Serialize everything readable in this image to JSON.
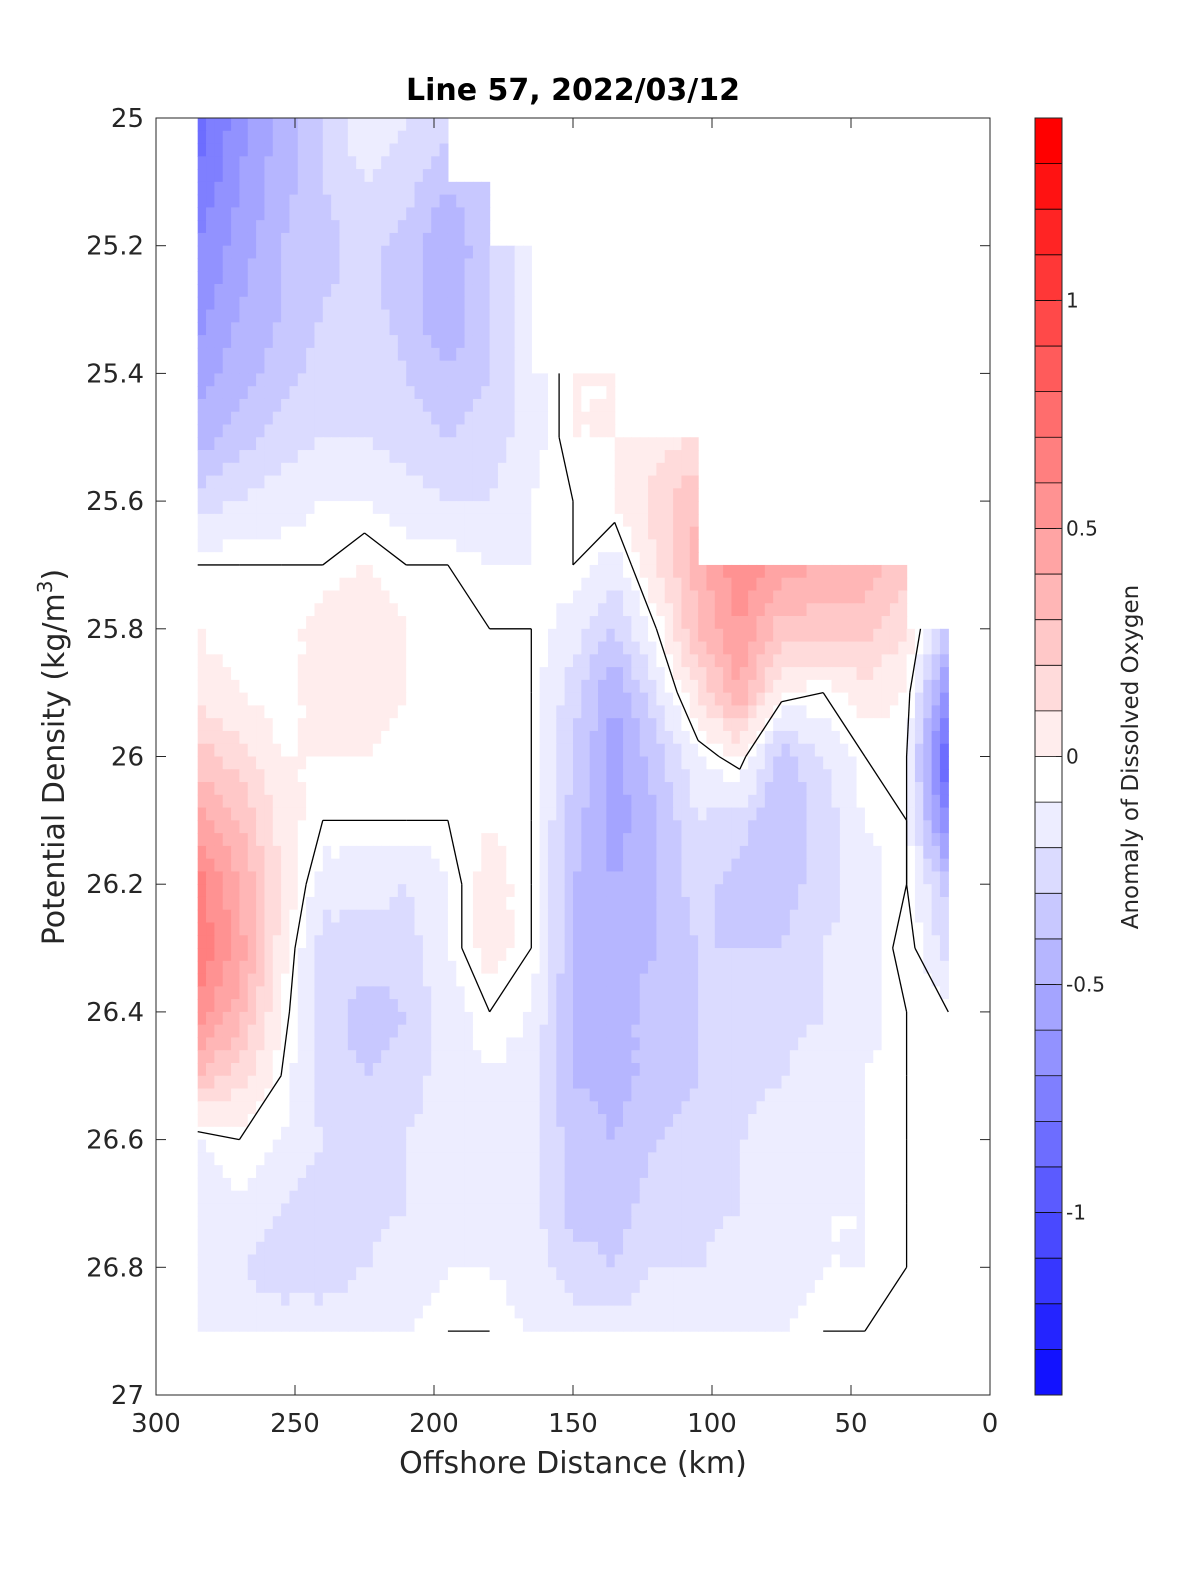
{
  "chart_data": {
    "type": "heatmap",
    "subtype": "filled-contour",
    "title": "Line 57, 2022/03/12",
    "xlabel": "Offshore Distance (km)",
    "ylabel": "Potential Density (kg/m",
    "ylabel_superscript": "3",
    "ylabel_suffix": ")",
    "x_reversed": true,
    "y_reversed": true,
    "xlim": [
      0,
      300
    ],
    "ylim": [
      25,
      27
    ],
    "xticks": [
      300,
      250,
      200,
      150,
      100,
      50,
      0
    ],
    "yticks": [
      25,
      25.2,
      25.4,
      25.6,
      25.8,
      26,
      26.2,
      26.4,
      26.6,
      26.8,
      27
    ],
    "grid": false,
    "contour_line_level": 0,
    "colorbar": {
      "label": "Anomaly of Dissolved Oxygen",
      "range": [
        -1.4,
        1.4
      ],
      "level_step": 0.1,
      "ticks": [
        -1,
        -0.5,
        0,
        0.5,
        1
      ],
      "tick_labels": [
        "-1",
        "-0.5",
        "0",
        "0.5",
        "1"
      ],
      "colormap": "blue-white-red",
      "color_negative": "#0000ff",
      "color_zero": "#ffffff",
      "color_positive": "#ff0000"
    },
    "sample_grid": {
      "x_km": [
        285,
        270,
        255,
        240,
        225,
        210,
        195,
        180,
        165,
        150,
        135,
        120,
        105,
        90,
        75,
        60,
        45,
        30,
        15
      ],
      "density": [
        25.0,
        25.1,
        25.2,
        25.3,
        25.4,
        25.5,
        25.6,
        25.7,
        25.8,
        25.9,
        26.0,
        26.1,
        26.2,
        26.3,
        26.4,
        26.5,
        26.6,
        26.7,
        26.8,
        26.9
      ],
      "anomaly": [
        [
          -0.8,
          -0.6,
          -0.4,
          -0.25,
          -0.05,
          -0.15,
          -0.2,
          null,
          null,
          null,
          null,
          null,
          null,
          null,
          null,
          null,
          null,
          null,
          null
        ],
        [
          -0.75,
          -0.55,
          -0.4,
          -0.25,
          -0.15,
          -0.2,
          -0.35,
          -0.25,
          null,
          null,
          null,
          null,
          null,
          null,
          null,
          null,
          null,
          null,
          null
        ],
        [
          -0.65,
          -0.5,
          -0.35,
          -0.3,
          -0.2,
          -0.3,
          -0.45,
          -0.25,
          -0.1,
          null,
          null,
          null,
          null,
          null,
          null,
          null,
          null,
          null,
          null
        ],
        [
          -0.6,
          -0.45,
          -0.35,
          -0.25,
          -0.2,
          -0.3,
          -0.45,
          -0.25,
          -0.1,
          null,
          null,
          null,
          null,
          null,
          null,
          null,
          null,
          null,
          null
        ],
        [
          -0.5,
          -0.4,
          -0.3,
          -0.2,
          -0.15,
          -0.25,
          -0.35,
          -0.25,
          -0.1,
          0.05,
          0.05,
          null,
          null,
          null,
          null,
          null,
          null,
          null,
          null
        ],
        [
          -0.4,
          -0.3,
          -0.2,
          -0.15,
          -0.15,
          -0.2,
          -0.25,
          -0.2,
          -0.1,
          0.05,
          0.05,
          0.1,
          0.15,
          null,
          null,
          null,
          null,
          null,
          null
        ],
        [
          -0.2,
          -0.15,
          -0.1,
          -0.05,
          -0.05,
          -0.1,
          -0.15,
          -0.15,
          -0.05,
          0.0,
          0.05,
          0.2,
          0.35,
          null,
          null,
          null,
          null,
          null,
          null
        ],
        [
          0.0,
          0.0,
          0.0,
          0.0,
          0.05,
          0.0,
          0.0,
          -0.05,
          -0.05,
          0.0,
          -0.1,
          0.15,
          0.4,
          0.65,
          0.5,
          0.45,
          0.4,
          0.3,
          null
        ],
        [
          0.05,
          0.0,
          0.0,
          0.1,
          0.15,
          0.05,
          0.0,
          0.0,
          0.0,
          -0.1,
          -0.25,
          0.0,
          0.35,
          0.55,
          0.3,
          0.3,
          0.3,
          0.15,
          -0.3
        ],
        [
          0.1,
          0.05,
          0.0,
          0.1,
          0.15,
          0.05,
          0.0,
          0.0,
          0.0,
          -0.2,
          -0.45,
          -0.15,
          0.15,
          0.45,
          0.05,
          0.0,
          0.1,
          0.05,
          -0.6
        ],
        [
          0.3,
          0.2,
          0.05,
          0.05,
          0.05,
          0.0,
          0.0,
          0.0,
          0.0,
          -0.25,
          -0.5,
          -0.3,
          -0.05,
          0.05,
          -0.3,
          -0.15,
          0.0,
          0.0,
          -0.9
        ],
        [
          0.5,
          0.35,
          0.1,
          0.0,
          0.0,
          0.0,
          0.0,
          0.05,
          0.0,
          -0.3,
          -0.5,
          -0.35,
          -0.15,
          -0.2,
          -0.35,
          -0.2,
          -0.05,
          0.0,
          -0.7
        ],
        [
          0.7,
          0.45,
          0.15,
          -0.1,
          -0.1,
          -0.15,
          -0.05,
          0.1,
          0.0,
          -0.35,
          -0.45,
          -0.35,
          -0.2,
          -0.3,
          -0.3,
          -0.2,
          -0.1,
          0.0,
          -0.3
        ],
        [
          0.75,
          0.5,
          0.1,
          -0.2,
          -0.2,
          -0.2,
          -0.05,
          0.1,
          0.0,
          -0.35,
          -0.4,
          -0.35,
          -0.25,
          -0.25,
          -0.25,
          -0.15,
          -0.1,
          0.05,
          -0.2
        ],
        [
          0.6,
          0.4,
          0.05,
          -0.2,
          -0.3,
          -0.25,
          -0.1,
          0.0,
          -0.05,
          -0.35,
          -0.4,
          -0.3,
          -0.25,
          -0.2,
          -0.2,
          -0.15,
          -0.1,
          0.0,
          0.0
        ],
        [
          0.35,
          0.2,
          0.0,
          -0.2,
          -0.25,
          -0.2,
          -0.1,
          -0.05,
          -0.1,
          -0.35,
          -0.4,
          -0.3,
          -0.25,
          -0.2,
          -0.15,
          -0.1,
          -0.05,
          0.0,
          0.0
        ],
        [
          -0.05,
          0.0,
          -0.05,
          -0.15,
          -0.2,
          -0.15,
          -0.1,
          -0.05,
          -0.1,
          -0.3,
          -0.35,
          -0.25,
          -0.2,
          -0.15,
          -0.1,
          -0.1,
          -0.05,
          0.0,
          0.0
        ],
        [
          -0.15,
          -0.05,
          -0.15,
          -0.2,
          -0.2,
          -0.15,
          -0.1,
          -0.05,
          -0.1,
          -0.3,
          -0.3,
          -0.2,
          -0.2,
          -0.15,
          -0.1,
          -0.05,
          -0.05,
          0.0,
          0.0
        ],
        [
          -0.1,
          -0.15,
          -0.2,
          -0.2,
          -0.15,
          -0.1,
          -0.05,
          -0.05,
          -0.1,
          -0.2,
          -0.25,
          -0.15,
          -0.15,
          -0.1,
          -0.1,
          -0.05,
          -0.05,
          0.0,
          0.0
        ],
        [
          -0.05,
          -0.1,
          -0.1,
          -0.1,
          -0.1,
          -0.05,
          0.0,
          0.0,
          -0.05,
          -0.1,
          -0.1,
          -0.05,
          -0.05,
          -0.05,
          -0.05,
          0.0,
          0.0,
          0.0,
          null
        ]
      ]
    }
  }
}
